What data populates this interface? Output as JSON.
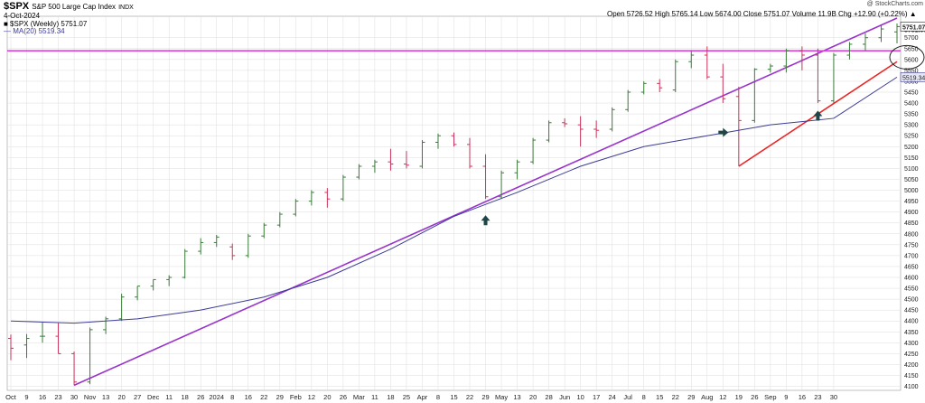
{
  "header": {
    "symbol": "$SPX",
    "name": "S&P 500 Large Cap Index",
    "exchange": "INDX",
    "date": "4-Oct-2024",
    "legend_symbol": "■ $SPX (Weekly) 5751.07",
    "legend_ma": "— MA(20) 5519.34",
    "ohlc": "Open 5726.52  High 5765.14  Low 5674.00  Close 5751.07  Volume 11.9B  Chg +12.90 (+0.22%) ▲",
    "watermark": "@ StockCharts.com",
    "last_price_label": "5751.07",
    "ma_price_label": "5519.34"
  },
  "colors": {
    "up_bar": "#3a7a3a",
    "down_bar": "#c8325a",
    "ma_line": "#3c3c96",
    "trend_purple": "#9933cc",
    "horizontal_magenta": "#e040e0",
    "trend_red": "#ee2222",
    "arrow": "#1e4646",
    "grid": "#dddddd"
  },
  "chart_data": {
    "type": "ohlc-bar",
    "interval": "weekly",
    "y_axis_labels": [
      "4100",
      "4150",
      "4200",
      "4250",
      "4300",
      "4350",
      "4400",
      "4450",
      "4500",
      "4550",
      "4600",
      "4650",
      "4700",
      "4750",
      "4800",
      "4850",
      "4900",
      "4950",
      "5000",
      "5050",
      "5100",
      "5150",
      "5200",
      "5250",
      "5300",
      "5350",
      "5400",
      "5450",
      "5500",
      "5550",
      "5600",
      "5650",
      "5700",
      "5751.07"
    ],
    "ylim": [
      4090,
      5790
    ],
    "x_labels": [
      "Oct",
      "9",
      "16",
      "23",
      "30",
      "Nov",
      "13",
      "20",
      "27",
      "Dec",
      "11",
      "18",
      "26",
      "2024",
      "8",
      "16",
      "22",
      "29",
      "Feb",
      "12",
      "20",
      "26",
      "Mar",
      "11",
      "18",
      "25",
      "Apr",
      "8",
      "15",
      "22",
      "29",
      "May",
      "13",
      "20",
      "28",
      "Jun",
      "10",
      "17",
      "24",
      "Jul",
      "8",
      "15",
      "22",
      "29",
      "Aug",
      "12",
      "19",
      "26",
      "Sep",
      "9",
      "16",
      "23",
      "30"
    ],
    "x_label_index": [
      0,
      1,
      2,
      3,
      4,
      5,
      6,
      7,
      8,
      9,
      10,
      11,
      12,
      13,
      14,
      15,
      16,
      17,
      18,
      19,
      20,
      21,
      22,
      23,
      24,
      25,
      26,
      27,
      28,
      29,
      30,
      31,
      32,
      33,
      34,
      35,
      36,
      37,
      38,
      39,
      40,
      41,
      42,
      43,
      44,
      45,
      46,
      47,
      48,
      49,
      50,
      51,
      52
    ],
    "bars": [
      {
        "o": 4320,
        "h": 4338,
        "l": 4220,
        "c": 4275
      },
      {
        "o": 4290,
        "h": 4340,
        "l": 4230,
        "c": 4320
      },
      {
        "o": 4330,
        "h": 4395,
        "l": 4300,
        "c": 4330
      },
      {
        "o": 4330,
        "h": 4390,
        "l": 4250,
        "c": 4250
      },
      {
        "o": 4250,
        "h": 4260,
        "l": 4105,
        "c": 4120
      },
      {
        "o": 4120,
        "h": 4370,
        "l": 4110,
        "c": 4360
      },
      {
        "o": 4360,
        "h": 4420,
        "l": 4340,
        "c": 4410
      },
      {
        "o": 4410,
        "h": 4525,
        "l": 4400,
        "c": 4510
      },
      {
        "o": 4510,
        "h": 4560,
        "l": 4495,
        "c": 4560
      },
      {
        "o": 4560,
        "h": 4590,
        "l": 4540,
        "c": 4590
      },
      {
        "o": 4590,
        "h": 4610,
        "l": 4560,
        "c": 4600
      },
      {
        "o": 4600,
        "h": 4730,
        "l": 4595,
        "c": 4720
      },
      {
        "o": 4720,
        "h": 4780,
        "l": 4705,
        "c": 4760
      },
      {
        "o": 4760,
        "h": 4795,
        "l": 4740,
        "c": 4785
      },
      {
        "o": 4740,
        "h": 4755,
        "l": 4680,
        "c": 4700
      },
      {
        "o": 4700,
        "h": 4800,
        "l": 4690,
        "c": 4790
      },
      {
        "o": 4790,
        "h": 4850,
        "l": 4780,
        "c": 4840
      },
      {
        "o": 4840,
        "h": 4900,
        "l": 4830,
        "c": 4890
      },
      {
        "o": 4890,
        "h": 4960,
        "l": 4880,
        "c": 4950
      },
      {
        "o": 4950,
        "h": 5000,
        "l": 4930,
        "c": 4990
      },
      {
        "o": 4990,
        "h": 5010,
        "l": 4920,
        "c": 4960
      },
      {
        "o": 4960,
        "h": 5070,
        "l": 4950,
        "c": 5060
      },
      {
        "o": 5060,
        "h": 5120,
        "l": 5050,
        "c": 5110
      },
      {
        "o": 5110,
        "h": 5140,
        "l": 5080,
        "c": 5130
      },
      {
        "o": 5130,
        "h": 5190,
        "l": 5090,
        "c": 5120
      },
      {
        "o": 5120,
        "h": 5180,
        "l": 5100,
        "c": 5115
      },
      {
        "o": 5110,
        "h": 5230,
        "l": 5100,
        "c": 5220
      },
      {
        "o": 5220,
        "h": 5260,
        "l": 5190,
        "c": 5250
      },
      {
        "o": 5250,
        "h": 5265,
        "l": 5200,
        "c": 5210
      },
      {
        "o": 5210,
        "h": 5240,
        "l": 5100,
        "c": 5110
      },
      {
        "o": 5110,
        "h": 5165,
        "l": 4960,
        "c": 4970
      },
      {
        "o": 4970,
        "h": 5090,
        "l": 4960,
        "c": 5080
      },
      {
        "o": 5080,
        "h": 5140,
        "l": 5050,
        "c": 5130
      },
      {
        "o": 5130,
        "h": 5240,
        "l": 5120,
        "c": 5230
      },
      {
        "o": 5230,
        "h": 5320,
        "l": 5220,
        "c": 5310
      },
      {
        "o": 5310,
        "h": 5330,
        "l": 5290,
        "c": 5305
      },
      {
        "o": 5300,
        "h": 5340,
        "l": 5200,
        "c": 5280
      },
      {
        "o": 5280,
        "h": 5320,
        "l": 5240,
        "c": 5275
      },
      {
        "o": 5280,
        "h": 5380,
        "l": 5270,
        "c": 5370
      },
      {
        "o": 5370,
        "h": 5460,
        "l": 5360,
        "c": 5450
      },
      {
        "o": 5450,
        "h": 5500,
        "l": 5440,
        "c": 5490
      },
      {
        "o": 5490,
        "h": 5510,
        "l": 5450,
        "c": 5470
      },
      {
        "o": 5460,
        "h": 5600,
        "l": 5450,
        "c": 5590
      },
      {
        "o": 5590,
        "h": 5640,
        "l": 5560,
        "c": 5620
      },
      {
        "o": 5620,
        "h": 5660,
        "l": 5510,
        "c": 5520
      },
      {
        "o": 5520,
        "h": 5580,
        "l": 5400,
        "c": 5420
      },
      {
        "o": 5430,
        "h": 5475,
        "l": 5110,
        "c": 5320
      },
      {
        "o": 5320,
        "h": 5560,
        "l": 5310,
        "c": 5555
      },
      {
        "o": 5555,
        "h": 5580,
        "l": 5540,
        "c": 5570
      },
      {
        "o": 5570,
        "h": 5650,
        "l": 5540,
        "c": 5640
      },
      {
        "o": 5640,
        "h": 5660,
        "l": 5550,
        "c": 5620
      },
      {
        "o": 5620,
        "h": 5650,
        "l": 5400,
        "c": 5410
      },
      {
        "o": 5410,
        "h": 5630,
        "l": 5400,
        "c": 5620
      },
      {
        "o": 5620,
        "h": 5680,
        "l": 5600,
        "c": 5670
      },
      {
        "o": 5670,
        "h": 5720,
        "l": 5640,
        "c": 5700
      },
      {
        "o": 5700,
        "h": 5760,
        "l": 5680,
        "c": 5740
      },
      {
        "o": 5726.52,
        "h": 5765.14,
        "l": 5674.0,
        "c": 5751.07
      }
    ],
    "ma20": [
      [
        0,
        4400
      ],
      [
        4,
        4390
      ],
      [
        8,
        4410
      ],
      [
        12,
        4450
      ],
      [
        16,
        4510
      ],
      [
        20,
        4600
      ],
      [
        24,
        4730
      ],
      [
        28,
        4880
      ],
      [
        32,
        4990
      ],
      [
        36,
        5110
      ],
      [
        40,
        5200
      ],
      [
        44,
        5250
      ],
      [
        48,
        5300
      ],
      [
        52,
        5330
      ],
      [
        56,
        5519
      ]
    ],
    "annotations": {
      "purple_trend": [
        [
          4,
          4105
        ],
        [
          56,
          5790
        ]
      ],
      "horizontal_line": 5640,
      "red_trend": [
        [
          46,
          5110
        ],
        [
          56,
          5590
        ]
      ],
      "circle_price": 5610,
      "arrows": [
        {
          "dir": "up",
          "i": 30,
          "p": 4860
        },
        {
          "dir": "right",
          "i": 45,
          "p": 5265
        },
        {
          "dir": "up",
          "i": 51,
          "p": 5340
        }
      ]
    }
  }
}
